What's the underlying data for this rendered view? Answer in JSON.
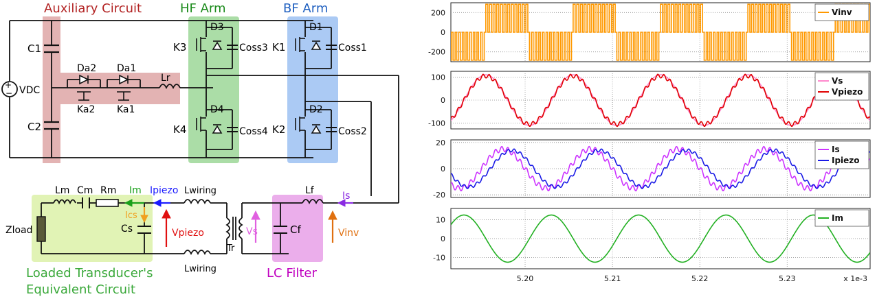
{
  "circuit": {
    "regions": {
      "auxiliary": {
        "label": "Auxiliary Circuit",
        "color": "#d99a9a"
      },
      "hf_arm": {
        "label": "HF Arm",
        "color": "#8fd18a"
      },
      "bf_arm": {
        "label": "BF Arm",
        "color": "#8fb8f0"
      },
      "transducer": {
        "label_line1": "Loaded Transducer's",
        "label_line2": "Equivalent Circuit",
        "color": "#d9f0a3"
      },
      "lc_filter": {
        "label": "LC Filter",
        "color": "#e69ae6"
      }
    },
    "label_colors": {
      "auxiliary": "#b22222",
      "hf_arm": "#1a8a1a",
      "bf_arm": "#2060c0",
      "transducer": "#39a839",
      "lc_filter": "#c000c0"
    },
    "components": {
      "vdc": "VDC",
      "c1": "C1",
      "c2": "C2",
      "da2": "Da2",
      "da1": "Da1",
      "ka2": "Ka2",
      "ka1": "Ka1",
      "lr": "Lr",
      "k3": "K3",
      "d3": "D3",
      "coss3": "Coss3",
      "k4": "K4",
      "d4": "D4",
      "coss4": "Coss4",
      "k1": "K1",
      "d1": "D1",
      "coss1": "Coss1",
      "k2": "K2",
      "d2": "D2",
      "coss2": "Coss2",
      "lm": "Lm",
      "cm": "Cm",
      "rm": "Rm",
      "zload": "Zload",
      "cs": "Cs",
      "lwiring_top": "Lwiring",
      "lwiring_bottom": "Lwiring",
      "tr": "Tr",
      "lf": "Lf",
      "cf": "Cf"
    },
    "signals": {
      "im": {
        "label": "Im",
        "color": "#1aa01a"
      },
      "ipiezo": {
        "label": "Ipiezo",
        "color": "#1a1aff"
      },
      "ics": {
        "label": "Ics",
        "color": "#f0a020"
      },
      "vpiezo": {
        "label": "Vpiezo",
        "color": "#e01010"
      },
      "vs": {
        "label": "Vs",
        "color": "#e060e0"
      },
      "vinv": {
        "label": "Vinv",
        "color": "#e07010"
      },
      "is": {
        "label": "Is",
        "color": "#8a2be2"
      }
    }
  },
  "chart_data": [
    {
      "type": "line",
      "x_range": [
        5.1915,
        5.2395
      ],
      "ylim": [
        -300,
        300
      ],
      "yticks": [
        200,
        0,
        -200
      ],
      "grid": true,
      "legend_position": "top-right",
      "series": [
        {
          "name": "Vinv",
          "color": "#ff9900",
          "shape": "pwm-square",
          "amplitude": 285,
          "period": 0.01,
          "phase_start": 5.1955
        }
      ]
    },
    {
      "type": "line",
      "x_range": [
        5.1915,
        5.2395
      ],
      "ylim": [
        -125,
        125
      ],
      "yticks": [
        100,
        0,
        -100
      ],
      "grid": true,
      "legend_position": "top-right",
      "series": [
        {
          "name": "Vs",
          "color": "#ff88cc",
          "shape": "sine",
          "amplitude": 110,
          "period": 0.01,
          "phase_peak": 5.1955,
          "ripple": 0
        },
        {
          "name": "Vpiezo",
          "color": "#e00000",
          "shape": "sine",
          "amplitude": 105,
          "period": 0.01,
          "phase_peak": 5.1955,
          "ripple": 9
        }
      ]
    },
    {
      "type": "line",
      "x_range": [
        5.1915,
        5.2395
      ],
      "ylim": [
        -22,
        22
      ],
      "yticks": [
        20,
        0,
        -20
      ],
      "grid": true,
      "legend_position": "top-right",
      "series": [
        {
          "name": "Is",
          "color": "#cc33ff",
          "shape": "sine",
          "amplitude": 15,
          "period": 0.01,
          "phase_peak": 5.1975,
          "ripple": 2
        },
        {
          "name": "Ipiezo",
          "color": "#1a1ae6",
          "shape": "sine",
          "amplitude": 14,
          "period": 0.01,
          "phase_peak": 5.1985,
          "ripple": 1.2
        }
      ]
    },
    {
      "type": "line",
      "x_range": [
        5.1915,
        5.2395
      ],
      "ylim": [
        -16,
        16
      ],
      "yticks": [
        10,
        0,
        -10
      ],
      "xticks": [
        5.2,
        5.21,
        5.22,
        5.23
      ],
      "xtick_labels": [
        "5.20",
        "5.21",
        "5.22",
        "5.23"
      ],
      "x_unit_label": "x 1e-3",
      "grid": true,
      "legend_position": "top-right",
      "series": [
        {
          "name": "Im",
          "color": "#22b022",
          "shape": "sine",
          "amplitude": 12.5,
          "period": 0.01,
          "phase_peak": 5.193,
          "ripple": 0
        }
      ]
    }
  ]
}
